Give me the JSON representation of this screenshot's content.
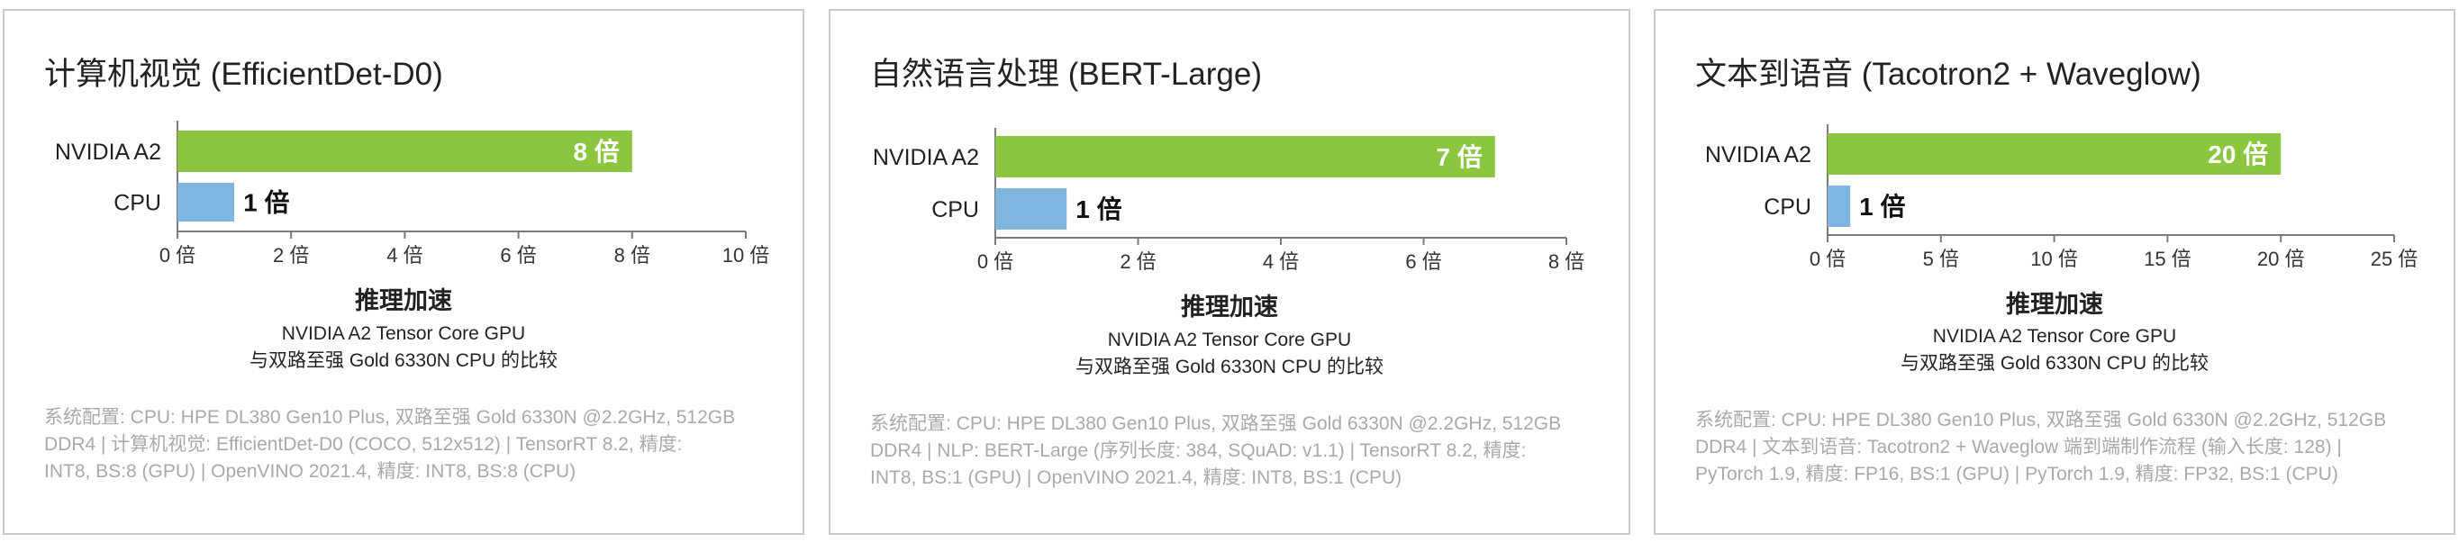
{
  "panels": [
    {
      "title": "计算机视觉 (EfficientDet-D0)",
      "x_title": "推理加速",
      "subtitle_1": "NVIDIA A2 Tensor Core GPU",
      "subtitle_2": "与双路至强 Gold 6330N CPU 的比较",
      "note_lines": [
        "系统配置: CPU: HPE DL380 Gen10 Plus, 双路至强 Gold 6330N @2.2GHz, 512GB",
        "DDR4 | 计算机视觉: EfficientDet-D0 (COCO, 512x512) | TensorRT 8.2, 精度:",
        "INT8, BS:8 (GPU) | OpenVINO 2021.4, 精度: INT8, BS:8 (CPU)"
      ]
    },
    {
      "title": "自然语言处理 (BERT-Large)",
      "x_title": "推理加速",
      "subtitle_1": "NVIDIA A2 Tensor Core GPU",
      "subtitle_2": "与双路至强 Gold 6330N CPU 的比较",
      "note_lines": [
        "系统配置: CPU: HPE DL380 Gen10 Plus, 双路至强 Gold 6330N @2.2GHz, 512GB",
        "DDR4 | NLP: BERT-Large (序列长度: 384,   SQuAD: v1.1) | TensorRT 8.2, 精度:",
        "INT8, BS:1 (GPU) | OpenVINO 2021.4, 精度: INT8, BS:1 (CPU)"
      ]
    },
    {
      "title": "文本到语音 (Tacotron2 + Waveglow)",
      "x_title": "推理加速",
      "subtitle_1": "NVIDIA A2 Tensor Core GPU",
      "subtitle_2": "与双路至强 Gold 6330N CPU 的比较",
      "note_lines": [
        "系统配置: CPU: HPE DL380 Gen10 Plus, 双路至强 Gold 6330N @2.2GHz, 512GB",
        "DDR4 | 文本到语音: Tacotron2 + Waveglow 端到端制作流程 (输入长度: 128) |",
        "PyTorch 1.9, 精度: FP16, BS:1 (GPU) | PyTorch 1.9, 精度: FP32, BS:1 (CPU)"
      ]
    }
  ],
  "chart_data": [
    {
      "type": "bar",
      "orientation": "horizontal",
      "title": "计算机视觉 (EfficientDet-D0)",
      "xlabel": "推理加速",
      "categories": [
        "NVIDIA A2",
        "CPU"
      ],
      "values": [
        8,
        1
      ],
      "data_labels": [
        "8 倍",
        "1 倍"
      ],
      "colors": [
        "#8cc63e",
        "#80b5e1"
      ],
      "xlim": [
        0,
        10
      ],
      "xticks": [
        0,
        2,
        4,
        6,
        8,
        10
      ],
      "xtick_labels": [
        "0 倍",
        "2 倍",
        "4 倍",
        "6 倍",
        "8 倍",
        "10 倍"
      ],
      "grid": false
    },
    {
      "type": "bar",
      "orientation": "horizontal",
      "title": "自然语言处理 (BERT-Large)",
      "xlabel": "推理加速",
      "categories": [
        "NVIDIA A2",
        "CPU"
      ],
      "values": [
        7,
        1
      ],
      "data_labels": [
        "7 倍",
        "1 倍"
      ],
      "colors": [
        "#8cc63e",
        "#80b5e1"
      ],
      "xlim": [
        0,
        8
      ],
      "xticks": [
        0,
        2,
        4,
        6,
        8
      ],
      "xtick_labels": [
        "0 倍",
        "2 倍",
        "4 倍",
        "6 倍",
        "8 倍"
      ],
      "grid": false
    },
    {
      "type": "bar",
      "orientation": "horizontal",
      "title": "文本到语音 (Tacotron2 + Waveglow)",
      "xlabel": "推理加速",
      "categories": [
        "NVIDIA A2",
        "CPU"
      ],
      "values": [
        20,
        1
      ],
      "data_labels": [
        "20 倍",
        "1 倍"
      ],
      "colors": [
        "#8cc63e",
        "#80b5e1"
      ],
      "xlim": [
        0,
        25
      ],
      "xticks": [
        0,
        5,
        10,
        15,
        20,
        25
      ],
      "xtick_labels": [
        "0 倍",
        "5 倍",
        "10 倍",
        "15 倍",
        "20 倍",
        "25 倍"
      ],
      "grid": false
    }
  ]
}
